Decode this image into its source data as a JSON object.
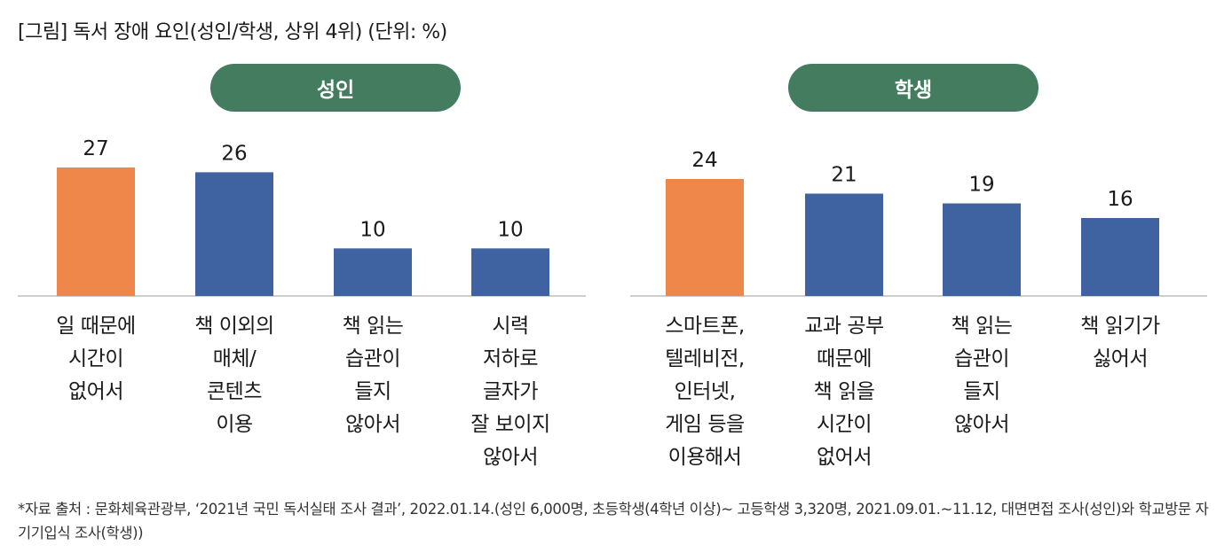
{
  "title": "[그림] 독서 장애 요인(성인/학생, 상위 4위) (단위: %)",
  "colors": {
    "highlight": "#f0874a",
    "bar": "#3f62a0",
    "pill": "#437c5e",
    "axis": "#bdbdbd"
  },
  "chart_data": [
    {
      "type": "bar",
      "title": "성인",
      "unit": "%",
      "categories": [
        "일 때문에\n시간이\n없어서",
        "책 이외의\n매체/\n콘텐츠\n이용",
        "책 읽는\n습관이\n들지\n않아서",
        "시력\n저하로\n글자가\n잘 보이지\n않아서"
      ],
      "values": [
        27,
        26,
        10,
        10
      ],
      "highlight_index": 0,
      "ylim": [
        0,
        27
      ]
    },
    {
      "type": "bar",
      "title": "학생",
      "unit": "%",
      "categories": [
        "스마트폰,\n텔레비전,\n인터넷,\n게임 등을\n이용해서",
        "교과 공부\n때문에\n책 읽을\n시간이\n없어서",
        "책 읽는\n습관이\n들지\n않아서",
        "책 읽기가\n싫어서"
      ],
      "values": [
        24,
        21,
        19,
        16
      ],
      "highlight_index": 0,
      "ylim": [
        0,
        24
      ]
    }
  ],
  "footnote": "*자료 출처 : 문화체육관광부, ‘2021년 국민 독서실태 조사 결과’, 2022.01.14.(성인 6,000명, 초등학생(4학년 이상)~ 고등학생 3,320명, 2021.09.01.~11.12, 대면면접 조사(성인)와 학교방문 자기기입식 조사(학생))"
}
